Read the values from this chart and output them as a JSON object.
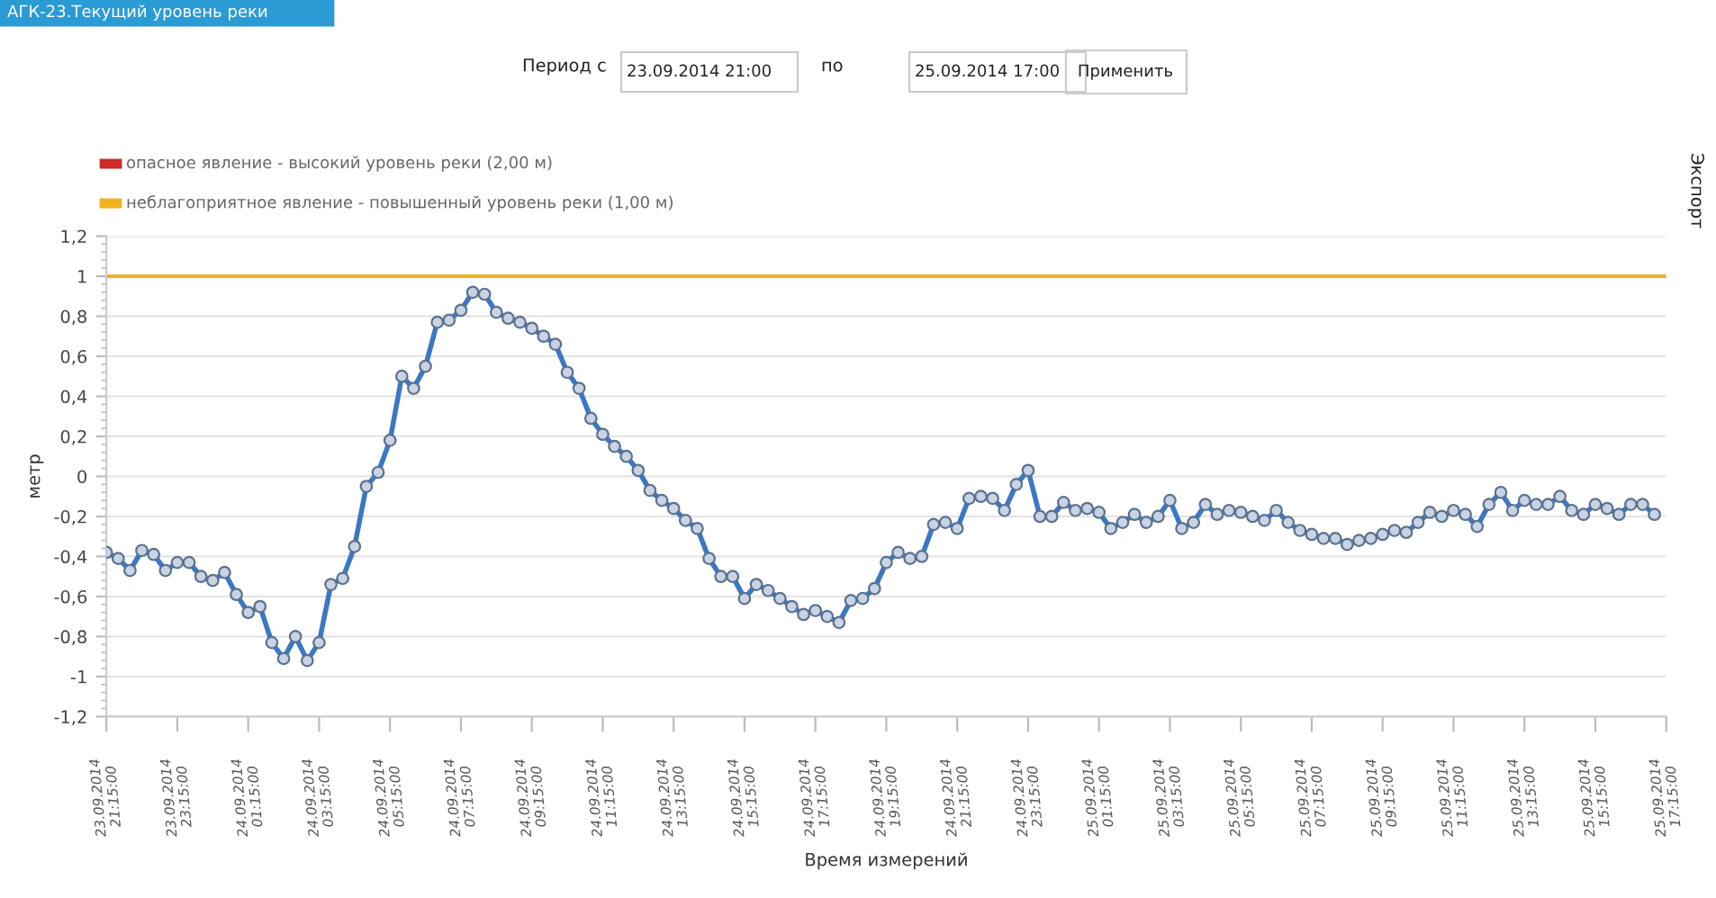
{
  "chart_data": {
    "type": "line",
    "title": "АГК-23.Текущий уровень реки",
    "annotations": [
      "Период с",
      "23.09.2014 21:00",
      "по",
      "25.09.2014 17:00",
      "Применить",
      "Экспорт",
      "опасное явление - высокий уровень реки (2,00 м)"
    ],
    "xlabel": "Время измерений",
    "ylabel": "метр",
    "x": [
      "2014-09-23T21:15",
      "2014-09-23T21:35",
      "2014-09-23T21:55",
      "2014-09-23T22:15",
      "2014-09-23T22:35",
      "2014-09-23T22:55",
      "2014-09-23T23:15",
      "2014-09-23T23:35",
      "2014-09-23T23:55",
      "2014-09-24T00:15",
      "2014-09-24T00:35",
      "2014-09-24T00:55",
      "2014-09-24T01:15",
      "2014-09-24T01:35",
      "2014-09-24T01:55",
      "2014-09-24T02:15",
      "2014-09-24T02:35",
      "2014-09-24T02:55",
      "2014-09-24T03:15",
      "2014-09-24T03:35",
      "2014-09-24T03:55",
      "2014-09-24T04:15",
      "2014-09-24T04:35",
      "2014-09-24T04:55",
      "2014-09-24T05:15",
      "2014-09-24T05:35",
      "2014-09-24T05:55",
      "2014-09-24T06:15",
      "2014-09-24T06:35",
      "2014-09-24T06:55",
      "2014-09-24T07:15",
      "2014-09-24T07:35",
      "2014-09-24T07:55",
      "2014-09-24T08:15",
      "2014-09-24T08:35",
      "2014-09-24T08:55",
      "2014-09-24T09:15",
      "2014-09-24T09:35",
      "2014-09-24T09:55",
      "2014-09-24T10:15",
      "2014-09-24T10:35",
      "2014-09-24T10:55",
      "2014-09-24T11:15",
      "2014-09-24T11:35",
      "2014-09-24T11:55",
      "2014-09-24T12:15",
      "2014-09-24T12:35",
      "2014-09-24T12:55",
      "2014-09-24T13:15",
      "2014-09-24T13:35",
      "2014-09-24T13:55",
      "2014-09-24T14:15",
      "2014-09-24T14:35",
      "2014-09-24T14:55",
      "2014-09-24T15:15",
      "2014-09-24T15:35",
      "2014-09-24T15:55",
      "2014-09-24T16:15",
      "2014-09-24T16:35",
      "2014-09-24T16:55",
      "2014-09-24T17:15",
      "2014-09-24T17:35",
      "2014-09-24T17:55",
      "2014-09-24T18:15",
      "2014-09-24T18:35",
      "2014-09-24T18:55",
      "2014-09-24T19:15",
      "2014-09-24T19:35",
      "2014-09-24T19:55",
      "2014-09-24T20:15",
      "2014-09-24T20:35",
      "2014-09-24T20:55",
      "2014-09-24T21:15",
      "2014-09-24T21:35",
      "2014-09-24T21:55",
      "2014-09-24T22:15",
      "2014-09-24T22:35",
      "2014-09-24T22:55",
      "2014-09-24T23:15",
      "2014-09-24T23:35",
      "2014-09-24T23:55",
      "2014-09-25T00:15",
      "2014-09-25T00:35",
      "2014-09-25T00:55",
      "2014-09-25T01:15",
      "2014-09-25T01:35",
      "2014-09-25T01:55",
      "2014-09-25T02:15",
      "2014-09-25T02:35",
      "2014-09-25T02:55",
      "2014-09-25T03:15",
      "2014-09-25T03:35",
      "2014-09-25T03:55",
      "2014-09-25T04:15",
      "2014-09-25T04:35",
      "2014-09-25T04:55",
      "2014-09-25T05:15",
      "2014-09-25T05:35",
      "2014-09-25T05:55",
      "2014-09-25T06:15",
      "2014-09-25T06:35",
      "2014-09-25T06:55",
      "2014-09-25T07:15",
      "2014-09-25T07:35",
      "2014-09-25T07:55",
      "2014-09-25T08:15",
      "2014-09-25T08:35",
      "2014-09-25T08:55",
      "2014-09-25T09:15",
      "2014-09-25T09:35",
      "2014-09-25T09:55",
      "2014-09-25T10:15",
      "2014-09-25T10:35",
      "2014-09-25T10:55",
      "2014-09-25T11:15",
      "2014-09-25T11:35",
      "2014-09-25T11:55",
      "2014-09-25T12:15",
      "2014-09-25T12:35",
      "2014-09-25T12:55",
      "2014-09-25T13:15",
      "2014-09-25T13:35",
      "2014-09-25T13:55",
      "2014-09-25T14:15",
      "2014-09-25T14:35",
      "2014-09-25T14:55",
      "2014-09-25T15:15",
      "2014-09-25T15:35",
      "2014-09-25T15:55",
      "2014-09-25T16:15",
      "2014-09-25T16:35",
      "2014-09-25T16:55"
    ],
    "series": [
      {
        "color": "#3b78c4",
        "values": [
          -0.38,
          -0.41,
          -0.47,
          -0.37,
          -0.39,
          -0.47,
          -0.43,
          -0.43,
          -0.5,
          -0.52,
          -0.48,
          -0.59,
          -0.68,
          -0.65,
          -0.83,
          -0.91,
          -0.8,
          -0.92,
          -0.83,
          -0.54,
          -0.51,
          -0.35,
          -0.05,
          0.02,
          0.18,
          0.5,
          0.44,
          0.55,
          0.77,
          0.78,
          0.83,
          0.92,
          0.91,
          0.82,
          0.79,
          0.77,
          0.74,
          0.7,
          0.66,
          0.52,
          0.44,
          0.29,
          0.21,
          0.15,
          0.1,
          0.03,
          -0.07,
          -0.12,
          -0.16,
          -0.22,
          -0.26,
          -0.41,
          -0.5,
          -0.5,
          -0.61,
          -0.54,
          -0.57,
          -0.61,
          -0.65,
          -0.69,
          -0.67,
          -0.7,
          -0.73,
          -0.62,
          -0.61,
          -0.56,
          -0.43,
          -0.38,
          -0.41,
          -0.4,
          -0.24,
          -0.23,
          -0.26,
          -0.11,
          -0.1,
          -0.11,
          -0.17,
          -0.04,
          0.03,
          -0.2,
          -0.2,
          -0.13,
          -0.17,
          -0.16,
          -0.18,
          -0.26,
          -0.23,
          -0.19,
          -0.23,
          -0.2,
          -0.12,
          -0.26,
          -0.23,
          -0.14,
          -0.19,
          -0.17,
          -0.18,
          -0.2,
          -0.22,
          -0.17,
          -0.23,
          -0.27,
          -0.29,
          -0.31,
          -0.31,
          -0.34,
          -0.32,
          -0.31,
          -0.29,
          -0.27,
          -0.28,
          -0.23,
          -0.18,
          -0.2,
          -0.17,
          -0.19,
          -0.25,
          -0.14,
          -0.08,
          -0.17,
          -0.12,
          -0.14,
          -0.14,
          -0.1,
          -0.17,
          -0.19,
          -0.14,
          -0.16,
          -0.19,
          -0.14,
          -0.14,
          -0.19
        ]
      }
    ],
    "marker": "circle",
    "line_style": "solid",
    "grid": "y",
    "ylim": [
      -1.2,
      1.2
    ],
    "yticks": [
      {
        "value": -1.2,
        "label": "-1,2"
      },
      -1,
      {
        "value": -0.8,
        "label": "-0,8"
      },
      {
        "value": -0.6,
        "label": "-0,6"
      },
      {
        "value": -0.4,
        "label": "-0,4"
      },
      {
        "value": -0.2,
        "label": "-0,2"
      },
      0,
      {
        "value": 0.2,
        "label": "0,2"
      },
      {
        "value": 0.4,
        "label": "0,4"
      },
      {
        "value": 0.6,
        "label": "0,6"
      },
      {
        "value": 0.8,
        "label": "0,8"
      },
      1,
      {
        "value": 1.2,
        "label": "1,2"
      }
    ],
    "xlim": [
      "2014-09-23T21:15",
      "2014-09-25T17:15"
    ],
    "xticks": [
      {
        "value": "2014-09-23T21:15",
        "label": "23.09.2014\n21:15:00"
      },
      {
        "value": "2014-09-23T23:15",
        "label": "23.09.2014\n23:15:00"
      },
      {
        "value": "2014-09-24T01:15",
        "label": "24.09.2014\n01:15:00"
      },
      {
        "value": "2014-09-24T03:15",
        "label": "24.09.2014\n03:15:00"
      },
      {
        "value": "2014-09-24T05:15",
        "label": "24.09.2014\n05:15:00"
      },
      {
        "value": "2014-09-24T07:15",
        "label": "24.09.2014\n07:15:00"
      },
      {
        "value": "2014-09-24T09:15",
        "label": "24.09.2014\n09:15:00"
      },
      {
        "value": "2014-09-24T11:15",
        "label": "24.09.2014\n11:15:00"
      },
      {
        "value": "2014-09-24T13:15",
        "label": "24.09.2014\n13:15:00"
      },
      {
        "value": "2014-09-24T15:15",
        "label": "24.09.2014\n15:15:00"
      },
      {
        "value": "2014-09-24T17:15",
        "label": "24.09.2014\n17:15:00"
      },
      {
        "value": "2014-09-24T19:15",
        "label": "24.09.2014\n19:15:00"
      },
      {
        "value": "2014-09-24T21:15",
        "label": "24.09.2014\n21:15:00"
      },
      {
        "value": "2014-09-24T23:15",
        "label": "24.09.2014\n23:15:00"
      },
      {
        "value": "2014-09-25T01:15",
        "label": "25.09.2014\n01:15:00"
      },
      {
        "value": "2014-09-25T03:15",
        "label": "25.09.2014\n03:15:00"
      },
      {
        "value": "2014-09-25T05:15",
        "label": "25.09.2014\n05:15:00"
      },
      {
        "value": "2014-09-25T07:15",
        "label": "25.09.2014\n07:15:00"
      },
      {
        "value": "2014-09-25T09:15",
        "label": "25.09.2014\n09:15:00"
      },
      {
        "value": "2014-09-25T11:15",
        "label": "25.09.2014\n11:15:00"
      },
      {
        "value": "2014-09-25T13:15",
        "label": "25.09.2014\n13:15:00"
      },
      {
        "value": "2014-09-25T15:15",
        "label": "25.09.2014\n15:15:00"
      },
      {
        "value": "2014-09-25T17:15",
        "label": "25.09.2014\n17:15:00"
      }
    ],
    "ref_lines": [
      {
        "axis": "y",
        "value": 1.0,
        "label": "неблагоприятное явление - повышенный уровень реки (1,00 м)",
        "color": "#f0b020",
        "line_style": "solid"
      }
    ]
  }
}
